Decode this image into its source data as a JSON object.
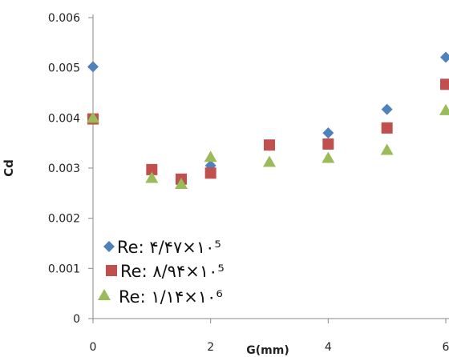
{
  "chart_data": {
    "type": "scatter",
    "title": "",
    "xlabel": "G(mm)",
    "ylabel": "Cd",
    "xlim": [
      0,
      6
    ],
    "ylim": [
      0,
      0.006
    ],
    "x_ticks": [
      "0",
      "2",
      "4",
      "6"
    ],
    "y_ticks": [
      "0",
      "0.001",
      "0.002",
      "0.003",
      "0.004",
      "0.005",
      "0.006"
    ],
    "grid": false,
    "legend_position": "bottom-left",
    "series": [
      {
        "name": "Re: ۴/۴۷×۱۰⁵",
        "marker": "diamond",
        "color": "#4F81BD",
        "points": [
          [
            0,
            0.00502
          ],
          [
            1,
            0.00295
          ],
          [
            1.5,
            0.00278
          ],
          [
            2,
            0.00305
          ],
          [
            3,
            0.00345
          ],
          [
            4,
            0.0037
          ],
          [
            5,
            0.00417
          ],
          [
            6,
            0.00521
          ]
        ]
      },
      {
        "name": "Re: ۸/۹۴×۱۰⁵",
        "marker": "square",
        "color": "#C0504D",
        "points": [
          [
            0,
            0.00398
          ],
          [
            1,
            0.00297
          ],
          [
            1.5,
            0.00278
          ],
          [
            2,
            0.0029
          ],
          [
            3,
            0.00346
          ],
          [
            4,
            0.00348
          ],
          [
            5,
            0.0038
          ],
          [
            6,
            0.00467
          ]
        ]
      },
      {
        "name": "Re: ۱/۱۴×۱۰⁶",
        "marker": "triangle",
        "color": "#9BBB59",
        "points": [
          [
            0,
            0.004
          ],
          [
            1,
            0.0028
          ],
          [
            1.5,
            0.00268
          ],
          [
            2,
            0.00322
          ],
          [
            3,
            0.00312
          ],
          [
            4,
            0.0032
          ],
          [
            5,
            0.00336
          ],
          [
            6,
            0.00415
          ]
        ]
      }
    ]
  }
}
